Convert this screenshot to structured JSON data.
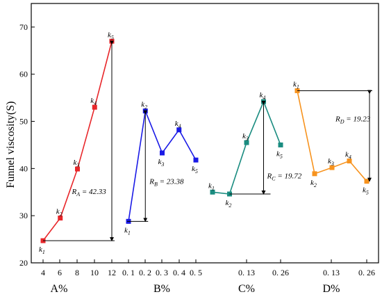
{
  "chart_data": {
    "type": "line",
    "ylabel": "Funnel viscosity(S)",
    "ylim": [
      20,
      75
    ],
    "yticks": [
      20,
      30,
      40,
      50,
      60,
      70
    ],
    "groups": [
      {
        "name": "A%",
        "color": "#e8262a",
        "ticks": [
          "4",
          "6",
          "8",
          "10",
          "12"
        ],
        "x": [
          4,
          6,
          8,
          10,
          12
        ],
        "y": [
          24.7,
          29.5,
          39.9,
          53.0,
          67.0
        ],
        "point_labels": [
          "k1",
          "k2",
          "k3",
          "k4",
          "k5"
        ],
        "range_label": "R_A = 42.33"
      },
      {
        "name": "B%",
        "color": "#1a1ae6",
        "ticks": [
          "0. 1",
          "0. 2",
          "0. 3",
          "0. 4",
          "0. 5"
        ],
        "x": [
          0.1,
          0.2,
          0.3,
          0.4,
          0.5
        ],
        "y": [
          28.8,
          52.2,
          43.3,
          48.2,
          41.8
        ],
        "point_labels": [
          "k1",
          "k2",
          "k3",
          "k4",
          "k5"
        ],
        "range_label": "R_B = 23.38"
      },
      {
        "name": "C%",
        "color": "#1a8c80",
        "ticks": [
          "0. 13",
          "0. 26"
        ],
        "x": [
          0.065,
          0.13,
          0.195,
          0.26,
          0.325
        ],
        "y": [
          35.0,
          34.6,
          45.5,
          54.2,
          45.0
        ],
        "point_labels": [
          "k1",
          "k2",
          "k3",
          "k4",
          "k5"
        ],
        "range_label": "R_C =19.72"
      },
      {
        "name": "D%",
        "color": "#f7931e",
        "ticks": [
          "0. 13",
          "0. 26"
        ],
        "x": [
          0.065,
          0.13,
          0.195,
          0.26,
          0.325
        ],
        "y": [
          56.5,
          38.9,
          40.2,
          41.6,
          37.3
        ],
        "point_labels": [
          "k1",
          "k2",
          "k3",
          "k4",
          "k5"
        ],
        "range_label": "R_D = 19.23"
      }
    ]
  }
}
